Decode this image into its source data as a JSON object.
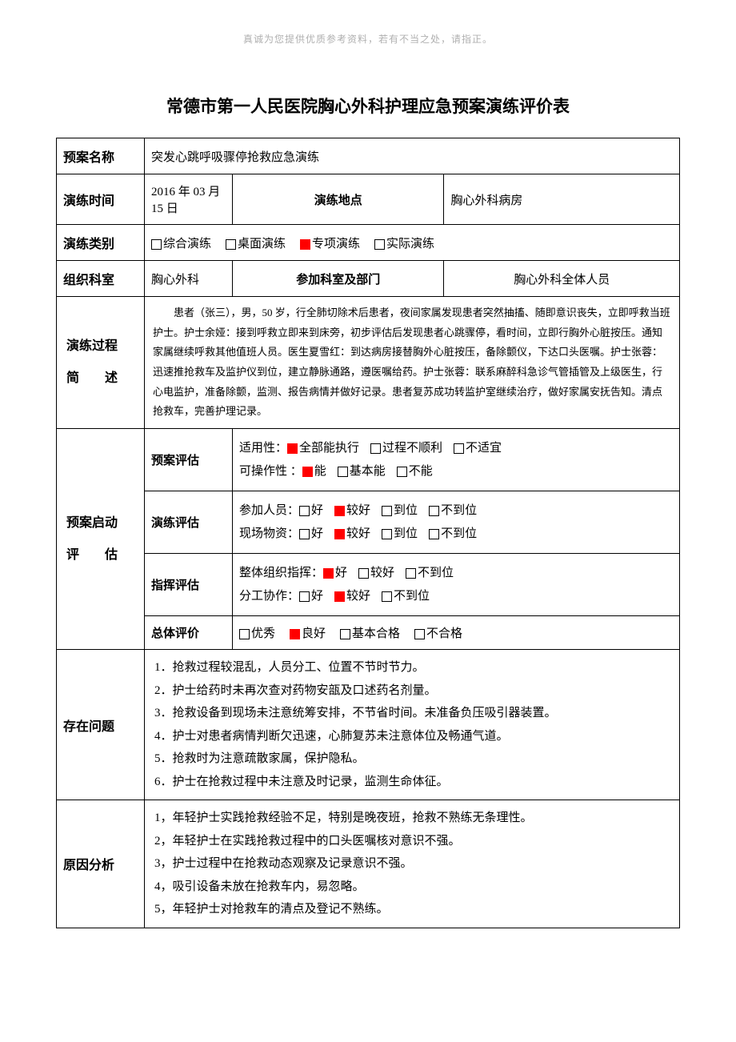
{
  "header_note": "真诚为您提供优质参考资料，若有不当之处，请指正。",
  "title": "常德市第一人民医院胸心外科护理应急预案演练评价表",
  "labels": {
    "plan_name": "预案名称",
    "drill_time": "演练时间",
    "drill_location": "演练地点",
    "drill_type": "演练类别",
    "org_dept": "组织科室",
    "participant_dept": "参加科室及部门",
    "process_desc_l1": "演练过程",
    "process_desc_l2": "简　　述",
    "startup_eval_l1": "预案启动",
    "startup_eval_l2": "评　　估",
    "plan_eval": "预案评估",
    "drill_eval": "演练评估",
    "command_eval": "指挥评估",
    "overall_eval": "总体评价",
    "problems": "存在问题",
    "cause_analysis": "原因分析"
  },
  "plan_name": "突发心跳呼吸骤停抢救应急演练",
  "drill_time": "2016 年 03 月 15 日",
  "drill_location": "胸心外科病房",
  "drill_types": [
    {
      "label": "综合演练",
      "checked": false
    },
    {
      "label": "桌面演练",
      "checked": false
    },
    {
      "label": "专项演练",
      "checked": true
    },
    {
      "label": "实际演练",
      "checked": false
    }
  ],
  "org_dept": "胸心外科",
  "participant_dept": "胸心外科全体人员",
  "process_desc": "患者（张三），男，50 岁，行全肺切除术后患者，夜间家属发现患者突然抽搐、随即意识丧失，立即呼救当班护士。护士余娅：接到呼救立即来到床旁，初步评估后发现患者心跳骤停，看时间，立即行胸外心脏按压。通知家属继续呼救其他值班人员。医生夏雪红：到达病房接替胸外心脏按压，备除颤仪，下达口头医嘱。护士张蓉：迅速推抢救车及监护仪到位，建立静脉通路，遵医嘱给药。护士张蓉：联系麻醉科急诊气管插管及上级医生，行心电监护，准备除颤，监测、报告病情并做好记录。患者复苏成功转监护室继续治疗，做好家属安抚告知。清点抢救车，完善护理记录。",
  "plan_eval": {
    "line1_label": "适用性：",
    "line1_opts": [
      {
        "label": "全部能执行",
        "checked": true
      },
      {
        "label": "过程不顺利",
        "checked": false
      },
      {
        "label": "不适宜",
        "checked": false
      }
    ],
    "line2_label": "可操作性 ：",
    "line2_opts": [
      {
        "label": "能",
        "checked": true
      },
      {
        "label": "基本能",
        "checked": false
      },
      {
        "label": "不能",
        "checked": false
      }
    ]
  },
  "drill_eval_lines": {
    "line1_label": "参加人员：",
    "line1_opts": [
      {
        "label": "好",
        "checked": false
      },
      {
        "label": "较好",
        "checked": true
      },
      {
        "label": "到位",
        "checked": false
      },
      {
        "label": "不到位",
        "checked": false
      }
    ],
    "line2_label": "现场物资：",
    "line2_opts": [
      {
        "label": "好",
        "checked": false
      },
      {
        "label": "较好",
        "checked": true
      },
      {
        "label": "到位",
        "checked": false
      },
      {
        "label": "不到位",
        "checked": false
      }
    ]
  },
  "command_eval_lines": {
    "line1_label": "整体组织指挥：",
    "line1_opts": [
      {
        "label": "好",
        "checked": true
      },
      {
        "label": "较好",
        "checked": false
      },
      {
        "label": "不到位",
        "checked": false
      }
    ],
    "line2_label": "分工协作：",
    "line2_opts": [
      {
        "label": "好",
        "checked": false
      },
      {
        "label": "较好",
        "checked": true
      },
      {
        "label": "不到位",
        "checked": false
      }
    ]
  },
  "overall_eval_opts": [
    {
      "label": "优秀",
      "checked": false
    },
    {
      "label": "良好",
      "checked": true
    },
    {
      "label": "基本合格",
      "checked": false
    },
    {
      "label": "不合格",
      "checked": false
    }
  ],
  "problems": [
    "1．抢救过程较混乱，人员分工、位置不节时节力。",
    "2．护士给药时未再次查对药物安瓿及口述药名剂量。",
    "3．抢救设备到现场未注意统筹安排，不节省时间。未准备负压吸引器装置。",
    "4．护士对患者病情判断欠迅速，心肺复苏未注意体位及畅通气道。",
    "5．抢救时为注意疏散家属，保护隐私。",
    "6．护士在抢救过程中未注意及时记录，监测生命体征。"
  ],
  "causes": [
    "1，年轻护士实践抢救经验不足，特别是晚夜班，抢救不熟练无条理性。",
    "2，年轻护士在实践抢救过程中的口头医嘱核对意识不强。",
    "3，护士过程中在抢救动态观察及记录意识不强。",
    "4，吸引设备未放在抢救车内，易忽略。",
    "5，年轻护士对抢救车的清点及登记不熟练。"
  ]
}
